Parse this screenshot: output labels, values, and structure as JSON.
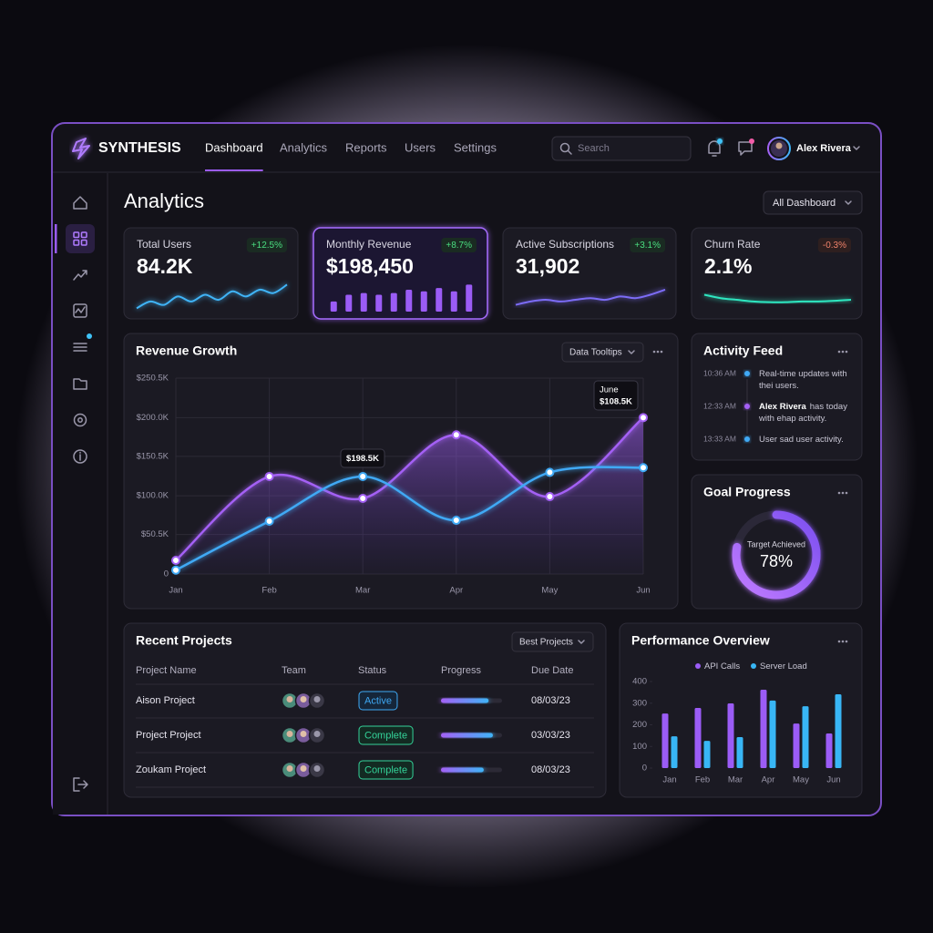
{
  "header": {
    "brand": "SYNTHESIS",
    "nav": [
      "Dashboard",
      "Analytics",
      "Reports",
      "Users",
      "Settings"
    ],
    "active_nav": 0,
    "search": "Search",
    "user": "Alex Rivera"
  },
  "page": {
    "title": "Analytics",
    "filter": "All Dashboard"
  },
  "kpis": [
    {
      "label": "Total Users",
      "value": "84.2K",
      "change": "+12.5%",
      "spark": {
        "type": "line",
        "color": "#3fb4f7",
        "ylim": [
          0,
          10
        ],
        "values": [
          1,
          3,
          2,
          4.5,
          3,
          5,
          3.5,
          6,
          4.5,
          6.5,
          5.5,
          8
        ]
      }
    },
    {
      "label": "Monthly Revenue",
      "value": "$198,450",
      "change": "+8.7%",
      "highlight": true,
      "spark": {
        "type": "bar",
        "color": "#9b5cf6",
        "ylim": [
          0,
          10
        ],
        "values": [
          3,
          5,
          5.5,
          5,
          5.5,
          6.5,
          6,
          7,
          6,
          8
        ]
      }
    },
    {
      "label": "Active Subscriptions",
      "value": "31,902",
      "change": "+3.1%",
      "spark": {
        "type": "line",
        "color": "#7c6cf6",
        "ylim": [
          0,
          10
        ],
        "values": [
          2,
          3,
          3.5,
          3,
          3.5,
          4,
          3.5,
          4.5,
          4,
          5,
          6.5
        ]
      }
    },
    {
      "label": "Churn Rate",
      "value": "2.1%",
      "change": "-0.3%",
      "spark": {
        "type": "line",
        "color": "#2ee6c0",
        "ylim": [
          0,
          10
        ],
        "values": [
          5,
          4,
          3.5,
          3,
          2.8,
          2.8,
          3,
          3,
          3.2,
          3.5
        ]
      }
    }
  ],
  "revenue": {
    "title": "Revenue Growth",
    "control": "Data Tooltips",
    "type": "line",
    "categories": [
      "Jan",
      "Feb",
      "Mar",
      "Apr",
      "May",
      "Jun"
    ],
    "ylim": [
      0,
      250500
    ],
    "yticks": [
      0,
      {
        "value": 50500,
        "label": "$50.5K"
      },
      {
        "value": 100000,
        "label": "$100.0K"
      },
      {
        "value": 150500,
        "label": "$150.5K"
      },
      {
        "value": 200000,
        "label": "$200.0K"
      },
      {
        "value": 250500,
        "label": "$250.5K"
      }
    ],
    "grid": true,
    "series": [
      {
        "color": "#a461f5",
        "area": true,
        "values": [
          17500,
          124700,
          96700,
          178000,
          99000,
          200000
        ]
      },
      {
        "color": "#3fa9f5",
        "values": [
          5000,
          67600,
          124700,
          68700,
          130000,
          136000
        ]
      }
    ],
    "annotations": [
      {
        "text": "$198.5K"
      },
      {
        "title": "June",
        "text": "$108.5K"
      }
    ]
  },
  "activity": {
    "title": "Activity Feed",
    "items": [
      {
        "time": "10:36 AM",
        "color": "#3fa9f5",
        "text": [
          "Real-time updates with",
          "thei users."
        ]
      },
      {
        "time": "12:33 AM",
        "color": "#a461f5",
        "bold": "Alex Rivera",
        "text": [
          "has today",
          "with ehap activity."
        ]
      },
      {
        "time": "13:33 AM",
        "color": "#3fa9f5",
        "text": [
          "User sad user activity."
        ]
      }
    ]
  },
  "goal": {
    "title": "Goal Progress",
    "label": "Target Achieved",
    "value": 78,
    "value_label": "78%"
  },
  "projects": {
    "title": "Recent Projects",
    "filter": "Best Projects",
    "columns": [
      "Project Name",
      "Team",
      "Status",
      "Progress",
      "Due Date"
    ],
    "rows": [
      {
        "name": "Aison Project",
        "status": "Active",
        "progress": 78,
        "due": "08/03/23"
      },
      {
        "name": "Project Project",
        "status": "Complete",
        "progress": 85,
        "due": "03/03/23"
      },
      {
        "name": "Zoukam Project",
        "status": "Complete",
        "progress": 70,
        "due": "08/03/23"
      }
    ]
  },
  "performance": {
    "title": "Performance Overview",
    "type": "bar",
    "categories": [
      "Jan",
      "Feb",
      "Mar",
      "Apr",
      "May",
      "Jun"
    ],
    "ylim": [
      0,
      400
    ],
    "yticks": [
      0,
      100,
      200,
      300,
      400
    ],
    "series": [
      {
        "name": "API Calls",
        "color": "#9b5cf6",
        "values": [
          252,
          278,
          299,
          362,
          206,
          160
        ]
      },
      {
        "name": "Server Load",
        "color": "#38b6f5",
        "values": [
          147,
          126,
          143,
          312,
          286,
          341
        ]
      }
    ]
  }
}
